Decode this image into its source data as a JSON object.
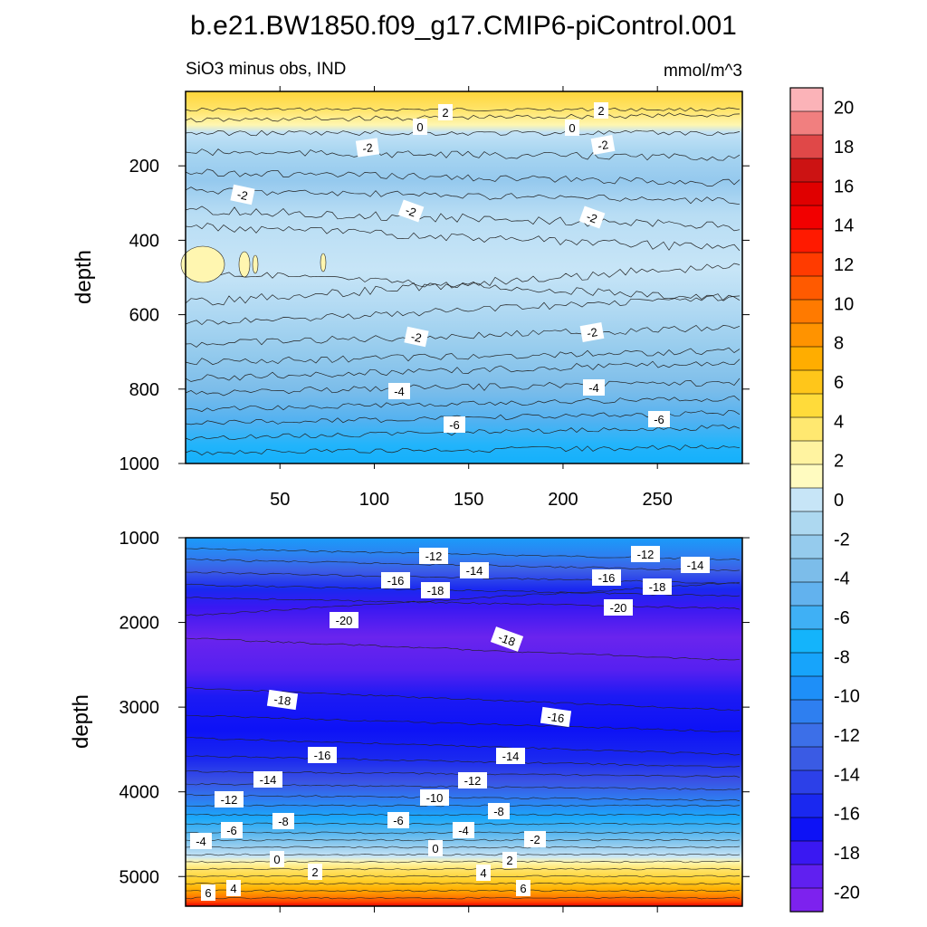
{
  "chart_data": {
    "type": "contour",
    "title": "b.e21.BW1850.f09_g17.CMIP6-piControl.001",
    "variable_label": "SiO3 minus obs, IND",
    "units_label": "mmol/m^3",
    "colorbar": {
      "levels": [
        -20,
        -18,
        -16,
        -14,
        -12,
        -10,
        -8,
        -6,
        -4,
        -2,
        0,
        2,
        4,
        6,
        8,
        10,
        12,
        14,
        16,
        18,
        20
      ],
      "tick_labels": [
        "20",
        "18",
        "16",
        "14",
        "12",
        "10",
        "8",
        "6",
        "4",
        "2",
        "0",
        "-2",
        "-4",
        "-6",
        "-8",
        "-10",
        "-12",
        "-14",
        "-16",
        "-18",
        "-20"
      ],
      "colors_top_to_bottom": [
        "#fbb3b8",
        "#f17f7f",
        "#e04848",
        "#cc1313",
        "#e00000",
        "#f20000",
        "#ff1a00",
        "#ff3b00",
        "#ff5a00",
        "#ff7a00",
        "#ff9300",
        "#ffad00",
        "#ffc61a",
        "#ffdb3a",
        "#ffe870",
        "#fff3a0",
        "#fffbc0",
        "#c7e5f7",
        "#add8f0",
        "#95cbed",
        "#7cbdea",
        "#62b2ee",
        "#3fb0f5",
        "#14b4fb",
        "#17a4fb",
        "#1e8ff8",
        "#2e7ff0",
        "#3c6fe8",
        "#3a5be4",
        "#2c40e8",
        "#1a28f0",
        "#0d12f6",
        "#3a18f2",
        "#6020f0",
        "#7d22ee"
      ]
    },
    "panels": [
      {
        "name": "upper",
        "ylabel": "depth",
        "ylim": [
          1000,
          0
        ],
        "xlim": [
          0,
          295
        ],
        "x_tick_labels": [
          "50",
          "100",
          "150",
          "200",
          "250"
        ],
        "y_tick_labels": [
          "200",
          "400",
          "600",
          "800",
          "1000"
        ],
        "contour_labels": [
          "2",
          "0",
          "2",
          "0",
          "-2",
          "-2",
          "-2",
          "-2",
          "-2",
          "-2",
          "-2",
          "-4",
          "-4",
          "-6",
          "-6"
        ]
      },
      {
        "name": "lower",
        "ylabel": "depth",
        "ylim": [
          5350,
          1000
        ],
        "xlim": [
          0,
          295
        ],
        "y_tick_labels": [
          "1000",
          "2000",
          "3000",
          "4000",
          "5000"
        ],
        "contour_labels": [
          "-12",
          "-12",
          "-14",
          "-14",
          "-16",
          "-16",
          "-18",
          "-18",
          "-20",
          "-20",
          "-18",
          "-18",
          "-16",
          "-16",
          "-14",
          "-14",
          "-12",
          "-12",
          "-10",
          "-8",
          "-8",
          "-6",
          "-6",
          "-4",
          "-4",
          "-2",
          "0",
          "0",
          "2",
          "2",
          "4",
          "4",
          "6",
          "6"
        ]
      }
    ]
  }
}
